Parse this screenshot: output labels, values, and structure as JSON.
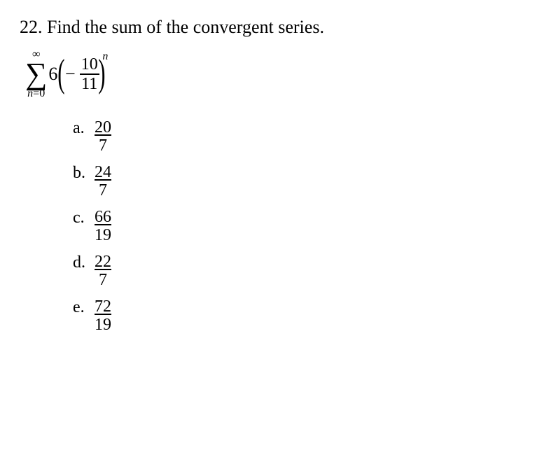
{
  "question": {
    "number": "22.",
    "text": "Find the sum of the convergent series."
  },
  "formula": {
    "sigma_top": "∞",
    "sigma_bottom_var": "n",
    "sigma_bottom_eq": "=",
    "sigma_bottom_val": "0",
    "coefficient": "6",
    "minus": "−",
    "frac_num": "10",
    "frac_den": "11",
    "exponent": "n",
    "lparen": "(",
    "rparen": ")"
  },
  "choices": [
    {
      "label": "a.",
      "num": "20",
      "den": "7"
    },
    {
      "label": "b.",
      "num": "24",
      "den": "7"
    },
    {
      "label": "c.",
      "num": "66",
      "den": "19"
    },
    {
      "label": "d.",
      "num": "22",
      "den": "7"
    },
    {
      "label": "e.",
      "num": "72",
      "den": "19"
    }
  ]
}
